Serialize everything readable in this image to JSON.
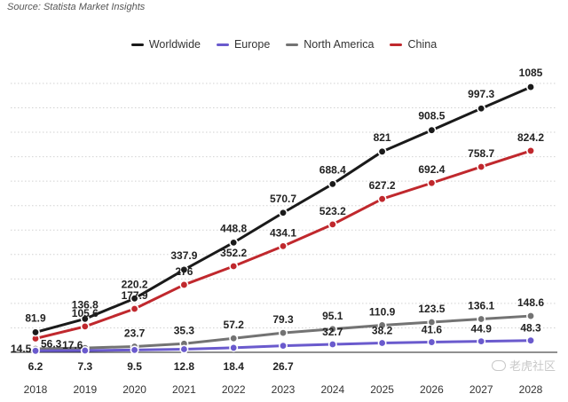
{
  "source": "Source: Statista Market Insights",
  "watermark": "老虎社区",
  "chart_data": {
    "type": "line",
    "categories": [
      "2018",
      "2019",
      "2020",
      "2021",
      "2022",
      "2023",
      "2024",
      "2025",
      "2026",
      "2027",
      "2028"
    ],
    "ylim": [
      0,
      1200
    ],
    "grid": true,
    "legend_position": "top-center",
    "series": [
      {
        "name": "Worldwide",
        "color": "#1a1a1a",
        "values": [
          81.9,
          136.8,
          220.2,
          337.9,
          448.8,
          570.7,
          688.4,
          821,
          908.5,
          997.3,
          1085
        ],
        "labels": [
          "81.9",
          "136.8",
          "220.2",
          "337.9",
          "448.8",
          "570.7",
          "688.4",
          "821",
          "908.5",
          "997.3",
          "1085"
        ]
      },
      {
        "name": "Europe",
        "color": "#6a5acd",
        "values": [
          6.2,
          7.3,
          9.5,
          12.8,
          18.4,
          26.7,
          32.7,
          38.2,
          41.6,
          44.9,
          48.3
        ],
        "labels": [
          "6.2",
          "7.3",
          "9.5",
          "12.8",
          "18.4",
          "26.7",
          "32.7",
          "38.2",
          "41.6",
          "44.9",
          "48.3"
        ]
      },
      {
        "name": "North America",
        "color": "#737373",
        "values": [
          14.5,
          17.6,
          23.7,
          35.3,
          57.2,
          79.3,
          95.1,
          110.9,
          123.5,
          136.1,
          148.6
        ],
        "labels": [
          "14.5",
          "17.6",
          "23.7",
          "35.3",
          "57.2",
          "79.3",
          "95.1",
          "110.9",
          "123.5",
          "136.1",
          "148.6"
        ]
      },
      {
        "name": "China",
        "color": "#c0282d",
        "values": [
          56.3,
          105.6,
          177.9,
          276,
          352.2,
          434.1,
          523.2,
          627.2,
          692.4,
          758.7,
          824.2
        ],
        "labels": [
          "56.3",
          "105.6",
          "177.9",
          "276",
          "352.2",
          "434.1",
          "523.2",
          "627.2",
          "692.4",
          "758.7",
          "824.2"
        ]
      }
    ]
  }
}
